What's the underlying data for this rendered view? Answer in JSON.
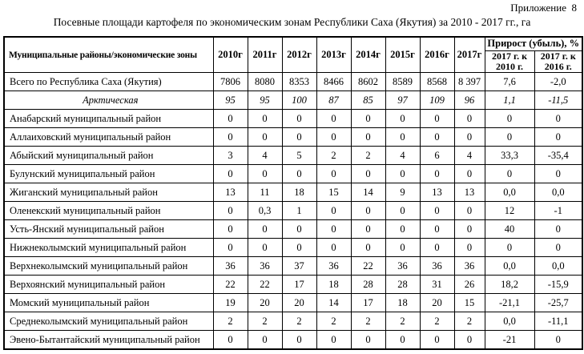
{
  "page": {
    "appendix": "Приложение  8",
    "title": "Посевные площади картофеля по экономическим зонам Республики Саха (Якутия) за 2010 - 2017 гг., га"
  },
  "table": {
    "header": {
      "name_col": "Муниципальные районы/экономические зоны",
      "year_cols": [
        "2010г",
        "2011г",
        "2012г",
        "2013г",
        "2014г",
        "2015г",
        "2016г",
        "2017г"
      ],
      "growth_group": "Прирост (убыль), %",
      "growth_cols": [
        "2017 г. к 2010 г.",
        "2017 г. к 2016 г."
      ]
    },
    "rows": [
      {
        "name": "Всего по Республика Саха (Якутия)",
        "style": "total",
        "values": [
          "7806",
          "8080",
          "8353",
          "8466",
          "8602",
          "8589",
          "8568",
          "8 397",
          "7,6",
          "-2,0"
        ]
      },
      {
        "name": "Арктическая",
        "style": "zone",
        "values": [
          "95",
          "95",
          "100",
          "87",
          "85",
          "97",
          "109",
          "96",
          "1,1",
          "-11,5"
        ]
      },
      {
        "name": "Анабарский муниципальный район",
        "style": "district",
        "values": [
          "0",
          "0",
          "0",
          "0",
          "0",
          "0",
          "0",
          "0",
          "0",
          "0"
        ]
      },
      {
        "name": "Аллаиховский муниципальный район",
        "style": "district",
        "values": [
          "0",
          "0",
          "0",
          "0",
          "0",
          "0",
          "0",
          "0",
          "0",
          "0"
        ]
      },
      {
        "name": "Абыйский муниципальный район",
        "style": "district",
        "values": [
          "3",
          "4",
          "5",
          "2",
          "2",
          "4",
          "6",
          "4",
          "33,3",
          "-35,4"
        ]
      },
      {
        "name": "Булунский муниципальный район",
        "style": "district",
        "values": [
          "0",
          "0",
          "0",
          "0",
          "0",
          "0",
          "0",
          "0",
          "0",
          "0"
        ]
      },
      {
        "name": "Жиганский муниципальный район",
        "style": "district",
        "values": [
          "13",
          "11",
          "18",
          "15",
          "14",
          "9",
          "13",
          "13",
          "0,0",
          "0,0"
        ]
      },
      {
        "name": "Оленекский муниципальный район",
        "style": "district",
        "values": [
          "0",
          "0,3",
          "1",
          "0",
          "0",
          "0",
          "0",
          "0",
          "12",
          "-1"
        ]
      },
      {
        "name": "Усть-Янский муниципальный район",
        "style": "district",
        "values": [
          "0",
          "0",
          "0",
          "0",
          "0",
          "0",
          "0",
          "0",
          "40",
          "0"
        ]
      },
      {
        "name": "Нижнеколымский муниципальный район",
        "style": "district",
        "values": [
          "0",
          "0",
          "0",
          "0",
          "0",
          "0",
          "0",
          "0",
          "0",
          "0"
        ]
      },
      {
        "name": "Верхнеколымский муниципальный район",
        "style": "district",
        "values": [
          "36",
          "36",
          "37",
          "36",
          "22",
          "36",
          "36",
          "36",
          "0,0",
          "0,0"
        ]
      },
      {
        "name": "Верхоянский муниципальный район",
        "style": "district",
        "values": [
          "22",
          "22",
          "17",
          "18",
          "28",
          "28",
          "31",
          "26",
          "18,2",
          "-15,9"
        ]
      },
      {
        "name": "Момский муниципальный район",
        "style": "district",
        "values": [
          "19",
          "20",
          "20",
          "14",
          "17",
          "18",
          "20",
          "15",
          "-21,1",
          "-25,7"
        ]
      },
      {
        "name": "Среднеколымский муниципальный район",
        "style": "district",
        "values": [
          "2",
          "2",
          "2",
          "2",
          "2",
          "2",
          "2",
          "2",
          "0,0",
          "-11,1"
        ]
      },
      {
        "name": "Эвено-Бытантайский муниципальный район",
        "style": "district",
        "values": [
          "0",
          "0",
          "0",
          "0",
          "0",
          "0",
          "0",
          "0",
          "-21",
          "0"
        ]
      }
    ],
    "colors": {
      "border": "#000000",
      "background": "#ffffff",
      "text": "#000000"
    }
  }
}
